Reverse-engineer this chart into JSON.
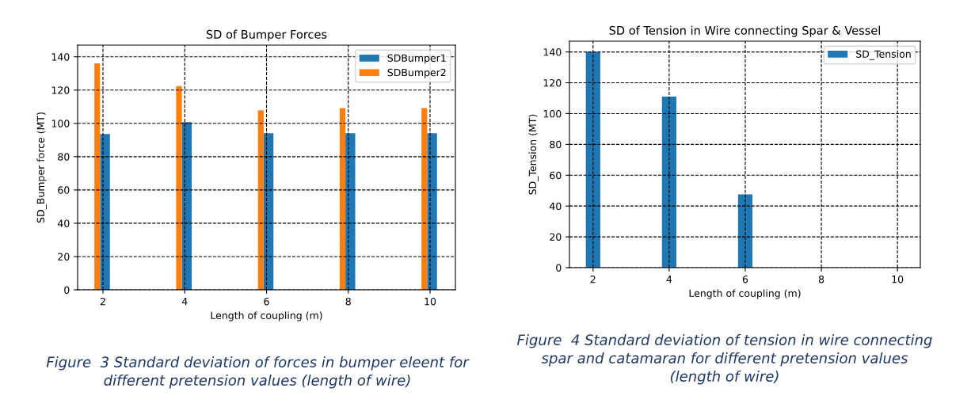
{
  "chart_data": [
    {
      "type": "bar",
      "title": "SD of Bumper Forces",
      "xlabel": "Length of coupling (m)",
      "ylabel": "SD_Bumper force (MT)",
      "series": [
        {
          "name": "SDBumper1",
          "color": "#1f77b4",
          "x": [
            2.05,
            4.05,
            6.05,
            8.05,
            10.05
          ],
          "values": [
            93.6,
            100.7,
            94.1,
            94.1,
            94.1
          ]
        },
        {
          "name": "SDBumper2",
          "color": "#ff7f0e",
          "x": [
            1.86,
            3.86,
            5.86,
            7.86,
            9.86
          ],
          "values": [
            136.1,
            122.4,
            107.9,
            109.2,
            109.2
          ]
        }
      ],
      "xlim": [
        1.38,
        10.62
      ],
      "xticks": [
        2,
        4,
        6,
        8,
        10
      ],
      "ylim": [
        0,
        147
      ],
      "yticks": [
        0,
        20,
        40,
        60,
        80,
        100,
        120,
        140
      ],
      "grid": true,
      "legend": "top right",
      "annotations": [
        "Figure  3 Standard deviation of forces in bumper eleent for\ndifferent pretension values (length of wire)"
      ]
    },
    {
      "type": "bar",
      "title": "SD of Tension in Wire connecting Spar & Vessel",
      "xlabel": "Length of coupling (m)",
      "ylabel": "SD_Tension (MT)",
      "series": [
        {
          "name": "SD_Tension",
          "color": "#1f77b4",
          "x": [
            2,
            4,
            6
          ],
          "values": [
            140,
            111,
            47.6
          ]
        }
      ],
      "xlim": [
        1.38,
        10.6
      ],
      "xticks": [
        2,
        4,
        6,
        8,
        10
      ],
      "ylim": [
        0,
        147
      ],
      "yticks": [
        0,
        20,
        40,
        60,
        80,
        100,
        120,
        140
      ],
      "grid": true,
      "legend": "top right",
      "annotations": [
        "Figure  4 Standard deviation of tension in wire connecting\nspar and catamaran for different pretension values\n(length of wire)"
      ]
    }
  ]
}
